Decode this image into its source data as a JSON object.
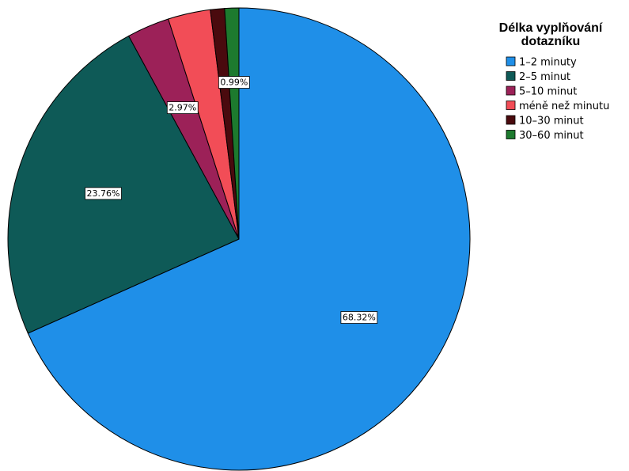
{
  "chart_data": {
    "type": "pie",
    "legend_title": "Délka vyplňování dotazníku",
    "legend_title_lines": [
      "Délka vyplňování",
      "dotazníku"
    ],
    "legend_position": "top-right",
    "start_angle_deg": 90,
    "direction": "clockwise",
    "slices": [
      {
        "label": "1–2 minuty",
        "value": 68.32,
        "data_label": "68.32%",
        "color": "#1F8FE8"
      },
      {
        "label": "2–5 minut",
        "value": 23.76,
        "data_label": "23.76%",
        "color": "#0E5A57"
      },
      {
        "label": "5–10 minut",
        "value": 2.97,
        "data_label": "2.97%",
        "color": "#9C2158"
      },
      {
        "label": "méně než minutu",
        "value": 2.97,
        "data_label": "",
        "color": "#F24D57"
      },
      {
        "label": "10–30 minut",
        "value": 0.99,
        "data_label": "",
        "color": "#4A0A0E"
      },
      {
        "label": "30–60 minut",
        "value": 0.99,
        "data_label": "0.99%",
        "color": "#1D7A2E"
      }
    ]
  }
}
